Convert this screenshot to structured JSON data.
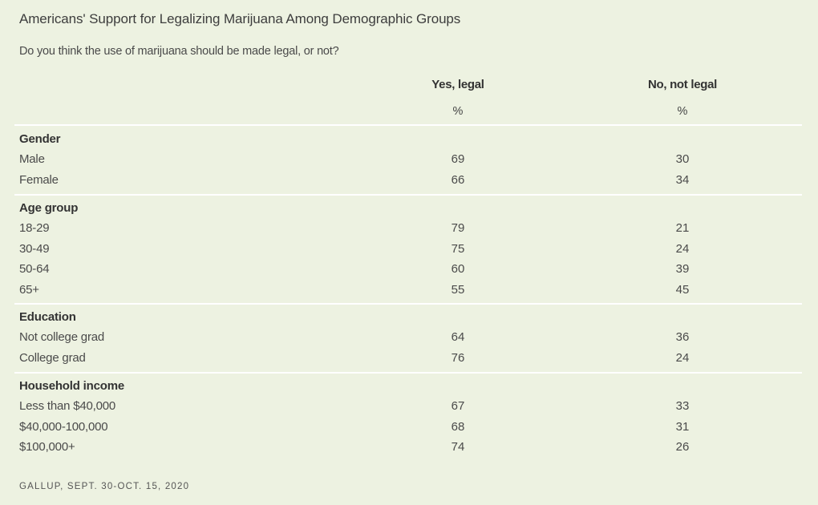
{
  "chart_data": {
    "type": "table",
    "title": "Americans' Support for Legalizing Marijuana Among Demographic Groups",
    "subtitle": "Do you think the use of marijuana should be made legal, or not?",
    "columns": [
      {
        "label": "Yes, legal",
        "unit": "%"
      },
      {
        "label": "No, not legal",
        "unit": "%"
      }
    ],
    "groups": [
      {
        "label": "Gender",
        "rows": [
          {
            "label": "Male",
            "values": [
              "69",
              "30"
            ]
          },
          {
            "label": "Female",
            "values": [
              "66",
              "34"
            ]
          }
        ]
      },
      {
        "label": "Age group",
        "rows": [
          {
            "label": "18-29",
            "values": [
              "79",
              "21"
            ]
          },
          {
            "label": "30-49",
            "values": [
              "75",
              "24"
            ]
          },
          {
            "label": "50-64",
            "values": [
              "60",
              "39"
            ]
          },
          {
            "label": "65+",
            "values": [
              "55",
              "45"
            ]
          }
        ]
      },
      {
        "label": "Education",
        "rows": [
          {
            "label": "Not college grad",
            "values": [
              "64",
              "36"
            ]
          },
          {
            "label": "College grad",
            "values": [
              "76",
              "24"
            ]
          }
        ]
      },
      {
        "label": "Household income",
        "rows": [
          {
            "label": "Less than $40,000",
            "values": [
              "67",
              "33"
            ]
          },
          {
            "label": "$40,000-100,000",
            "values": [
              "68",
              "31"
            ]
          },
          {
            "label": "$100,000+",
            "values": [
              "74",
              "26"
            ]
          }
        ]
      }
    ],
    "source": "GALLUP, SEPT. 30-OCT. 15, 2020"
  }
}
